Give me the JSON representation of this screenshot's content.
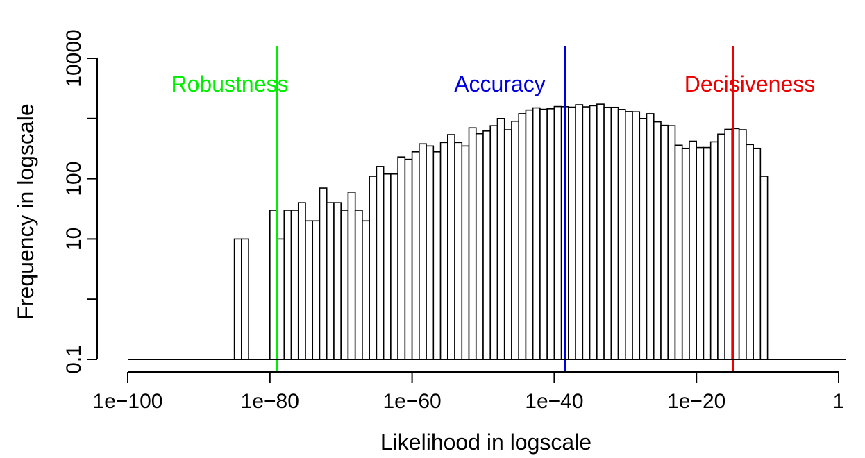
{
  "chart_data": {
    "type": "bar",
    "xlabel": "Likelihood in logscale",
    "ylabel": "Frequency in logscale",
    "x_scale": "log10",
    "y_scale": "log10",
    "xlim_log10": [
      -100,
      0
    ],
    "ylim": [
      0.1,
      10000
    ],
    "x_ticks": [
      {
        "log10": -100,
        "label": "1e−100"
      },
      {
        "log10": -80,
        "label": "1e−80"
      },
      {
        "log10": -60,
        "label": "1e−60"
      },
      {
        "log10": -40,
        "label": "1e−40"
      },
      {
        "log10": -20,
        "label": "1e−20"
      },
      {
        "log10": 0,
        "label": "1"
      }
    ],
    "y_ticks": [
      {
        "value": 0.1,
        "label": "0.1"
      },
      {
        "value": 10,
        "label": "10"
      },
      {
        "value": 100,
        "label": "100"
      },
      {
        "value": 10000,
        "label": "10000"
      }
    ],
    "y_minor_ticks": [
      1,
      1000
    ],
    "bin_width_log10": 1,
    "bins_left_log10": [
      -85,
      -84,
      -80,
      -79,
      -78,
      -77,
      -76,
      -75,
      -74,
      -73,
      -72,
      -71,
      -70,
      -69,
      -68,
      -67,
      -66,
      -65,
      -64,
      -63,
      -62,
      -61,
      -60,
      -59,
      -58,
      -57,
      -56,
      -55,
      -54,
      -53,
      -52,
      -51,
      -50,
      -49,
      -48,
      -47,
      -46,
      -45,
      -44,
      -43,
      -42,
      -41,
      -40,
      -39,
      -38,
      -37,
      -36,
      -35,
      -34,
      -33,
      -32,
      -31,
      -30,
      -29,
      -28,
      -27,
      -26,
      -25,
      -24,
      -23,
      -22,
      -21,
      -20,
      -19,
      -18,
      -17,
      -16,
      -15,
      -14,
      -13,
      -12,
      -11
    ],
    "frequencies": [
      10,
      10,
      30,
      10,
      30,
      30,
      40,
      20,
      20,
      70,
      40,
      40,
      30,
      60,
      30,
      20,
      110,
      160,
      120,
      120,
      230,
      210,
      280,
      380,
      350,
      280,
      400,
      540,
      400,
      350,
      700,
      560,
      620,
      760,
      1000,
      650,
      900,
      1200,
      1380,
      1500,
      1420,
      1450,
      1580,
      1570,
      1540,
      1690,
      1560,
      1630,
      1730,
      1530,
      1530,
      1410,
      1300,
      1290,
      1000,
      1200,
      880,
      770,
      760,
      360,
      320,
      420,
      330,
      330,
      410,
      550,
      660,
      680,
      650,
      370,
      320,
      110
    ],
    "zero_bins_from_log10": -10,
    "zero_bins_to_log10": -9,
    "vlines": [
      {
        "name": "Robustness",
        "x_log10": -79,
        "color": "#00ee00"
      },
      {
        "name": "Accuracy",
        "x_log10": -38.5,
        "color": "#0000dd"
      },
      {
        "name": "Decisiveness",
        "x_log10": -14.8,
        "color": "#ee0000"
      }
    ],
    "annotations": {
      "robustness": "Robustness",
      "accuracy": "Accuracy",
      "decisiveness": "Decisiveness"
    },
    "colors": {
      "robustness": "#00ee00",
      "accuracy": "#0000dd",
      "decisiveness": "#ee0000",
      "bar_fill": "#ffffff",
      "bar_stroke": "#000000"
    },
    "grid": false,
    "legend": "none"
  }
}
